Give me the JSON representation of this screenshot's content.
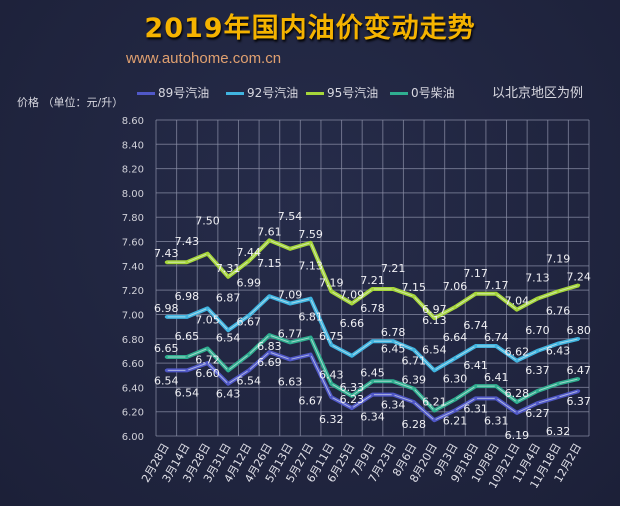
{
  "header": {
    "title": "2019年国内油价变动走势",
    "url": "www.autohome.com.cn",
    "note": "以北京地区为例"
  },
  "chart_data": {
    "type": "line",
    "title": "2019年国内油价变动走势",
    "ylabel": "价格 （单位：元/升）",
    "xlabel": "",
    "ylim": [
      6.0,
      8.6
    ],
    "ytick_step": 0.2,
    "grid": true,
    "legend_position": "top",
    "categories": [
      "2月28日",
      "3月14日",
      "3月28日",
      "3月31日",
      "4月12日",
      "4月26日",
      "5月13日",
      "5月27日",
      "6月11日",
      "6月25日",
      "7月9日",
      "7月23日",
      "8月6日",
      "8月20日",
      "9月3日",
      "9月18日",
      "10月8日",
      "10月21日",
      "11月4日",
      "11月18日",
      "12月2日"
    ],
    "series": [
      {
        "name": "89号汽油",
        "color": "#5058c8",
        "values": [
          6.54,
          6.54,
          6.6,
          6.43,
          6.54,
          6.69,
          6.63,
          6.67,
          6.32,
          6.23,
          6.34,
          6.34,
          6.28,
          6.13,
          6.21,
          6.31,
          6.31,
          6.19,
          6.27,
          6.32,
          6.37
        ]
      },
      {
        "name": "92号汽油",
        "color": "#40b4e0",
        "values": [
          6.98,
          6.98,
          7.05,
          6.87,
          6.99,
          7.15,
          7.09,
          7.13,
          6.75,
          6.66,
          6.78,
          6.78,
          6.71,
          6.54,
          6.64,
          6.74,
          6.74,
          6.62,
          6.7,
          6.76,
          6.8
        ]
      },
      {
        "name": "95号汽油",
        "color": "#a6d63a",
        "values": [
          7.43,
          7.43,
          7.5,
          7.31,
          7.44,
          7.61,
          7.54,
          7.59,
          7.19,
          7.09,
          7.21,
          7.21,
          7.15,
          6.97,
          7.06,
          7.17,
          7.17,
          7.04,
          7.13,
          7.19,
          7.24
        ]
      },
      {
        "name": "0号柴油",
        "color": "#2fae90",
        "values": [
          6.65,
          6.65,
          6.72,
          6.54,
          6.67,
          6.83,
          6.77,
          6.81,
          6.43,
          6.33,
          6.45,
          6.45,
          6.39,
          6.21,
          6.3,
          6.41,
          6.41,
          6.28,
          6.37,
          6.43,
          6.47
        ]
      }
    ]
  }
}
